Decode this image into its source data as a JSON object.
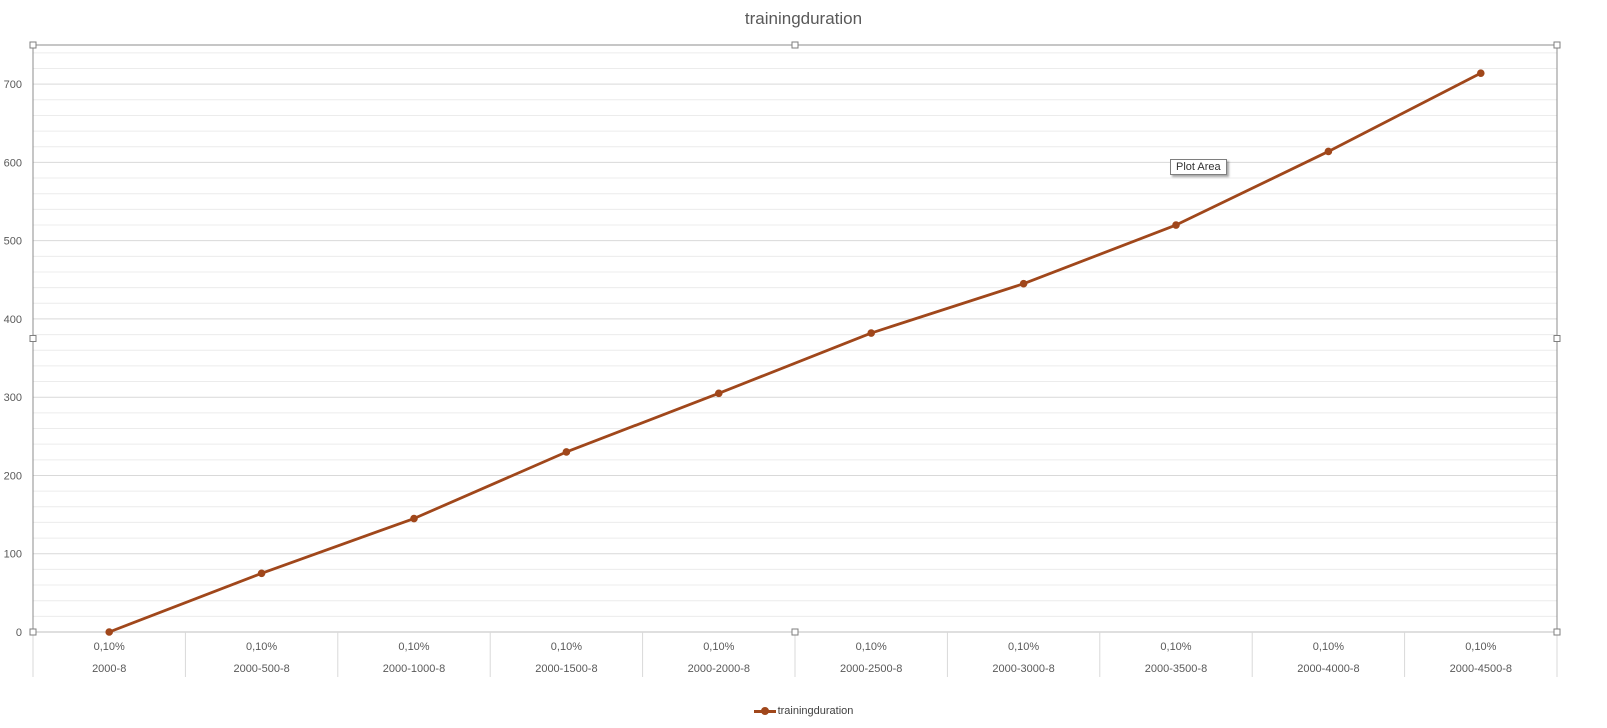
{
  "chart_data": {
    "type": "line",
    "title": "trainingduration",
    "categories_outer": [
      "2000-8",
      "2000-500-8",
      "2000-1000-8",
      "2000-1500-8",
      "2000-2000-8",
      "2000-2500-8",
      "2000-3000-8",
      "2000-3500-8",
      "2000-4000-8",
      "2000-4500-8"
    ],
    "categories_inner": [
      "0,10%",
      "0,10%",
      "0,10%",
      "0,10%",
      "0,10%",
      "0,10%",
      "0,10%",
      "0,10%",
      "0,10%",
      "0,10%"
    ],
    "series": [
      {
        "name": "trainingduration",
        "color": "#A0471B",
        "values": [
          0,
          75,
          145,
          230,
          305,
          382,
          445,
          520,
          614,
          714
        ]
      }
    ],
    "ylim": [
      0,
      750
    ],
    "yticks": [
      0,
      100,
      200,
      300,
      400,
      500,
      600,
      700
    ],
    "grid": true,
    "legend_position": "bottom"
  },
  "tooltip_text": "Plot Area"
}
